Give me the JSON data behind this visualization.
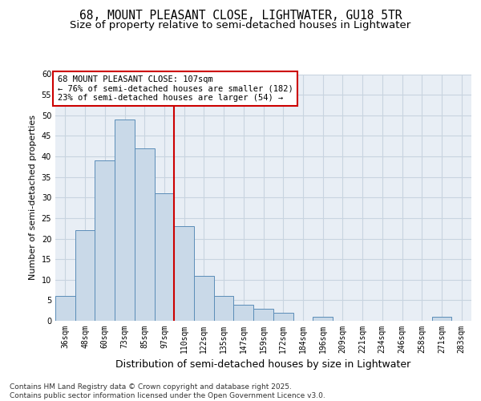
{
  "title1": "68, MOUNT PLEASANT CLOSE, LIGHTWATER, GU18 5TR",
  "title2": "Size of property relative to semi-detached houses in Lightwater",
  "xlabel": "Distribution of semi-detached houses by size in Lightwater",
  "ylabel": "Number of semi-detached properties",
  "categories": [
    "36sqm",
    "48sqm",
    "60sqm",
    "73sqm",
    "85sqm",
    "97sqm",
    "110sqm",
    "122sqm",
    "135sqm",
    "147sqm",
    "159sqm",
    "172sqm",
    "184sqm",
    "196sqm",
    "209sqm",
    "221sqm",
    "234sqm",
    "246sqm",
    "258sqm",
    "271sqm",
    "283sqm"
  ],
  "values": [
    6,
    22,
    39,
    49,
    42,
    31,
    23,
    11,
    6,
    4,
    3,
    2,
    0,
    1,
    0,
    0,
    0,
    0,
    0,
    1,
    0
  ],
  "bar_color": "#c9d9e8",
  "bar_edge_color": "#5b8db8",
  "marker_line_index": 6,
  "marker_line_color": "#cc0000",
  "annotation_text_line1": "68 MOUNT PLEASANT CLOSE: 107sqm",
  "annotation_text_line2": "← 76% of semi-detached houses are smaller (182)",
  "annotation_text_line3": "23% of semi-detached houses are larger (54) →",
  "annotation_box_edge_color": "#cc0000",
  "annotation_box_face_color": "#ffffff",
  "ylim": [
    0,
    60
  ],
  "yticks": [
    0,
    5,
    10,
    15,
    20,
    25,
    30,
    35,
    40,
    45,
    50,
    55,
    60
  ],
  "grid_color": "#c8d4e0",
  "background_color": "#e8eef5",
  "footer_text": "Contains HM Land Registry data © Crown copyright and database right 2025.\nContains public sector information licensed under the Open Government Licence v3.0.",
  "title1_fontsize": 10.5,
  "title2_fontsize": 9.5,
  "xlabel_fontsize": 9,
  "ylabel_fontsize": 8,
  "tick_fontsize": 7,
  "annotation_fontsize": 7.5,
  "footer_fontsize": 6.5
}
